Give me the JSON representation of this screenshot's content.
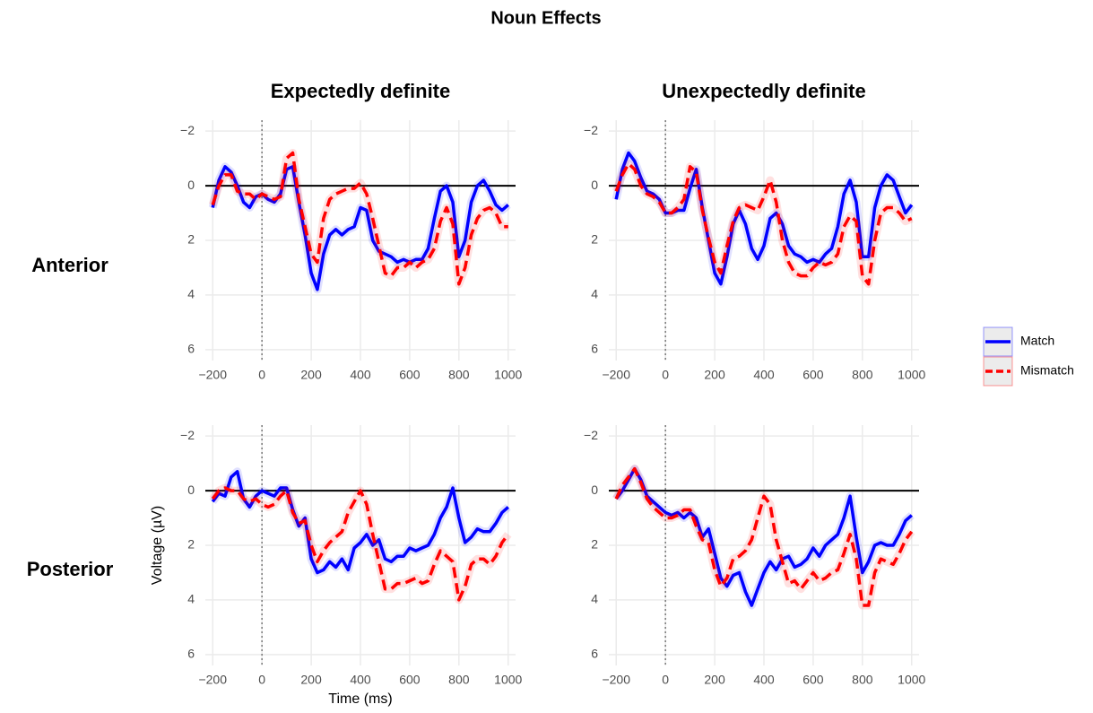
{
  "title": "Noun Effects",
  "column_labels": [
    "Expectedly definite",
    "Unexpectedly definite"
  ],
  "row_labels": [
    "Anterior",
    "Posterior"
  ],
  "chart_data": [
    {
      "type": "line",
      "legend": "right",
      "grid": true,
      "hline": 0,
      "vline": 0,
      "xlim": [
        -230,
        1030
      ],
      "ylim": [
        6.4,
        -2.4
      ],
      "xticks": [
        {
          "value": -200,
          "label": "−200"
        },
        0,
        200,
        400,
        600,
        800,
        1000
      ],
      "yticks": [
        {
          "value": -2,
          "label": "−2"
        },
        0,
        2,
        4,
        6
      ],
      "x": [
        -200,
        -175,
        -150,
        -125,
        -100,
        -75,
        -50,
        -25,
        0,
        25,
        50,
        75,
        100,
        125,
        150,
        175,
        200,
        225,
        250,
        275,
        300,
        325,
        350,
        375,
        400,
        425,
        450,
        475,
        500,
        525,
        550,
        575,
        600,
        625,
        650,
        675,
        700,
        725,
        750,
        775,
        800,
        825,
        850,
        875,
        900,
        925,
        950,
        975,
        1000
      ],
      "series": [
        {
          "name": "Match",
          "color": "#0000ff",
          "values": [
            0.8,
            -0.2,
            -0.7,
            -0.5,
            0,
            0.6,
            0.8,
            0.4,
            0.3,
            0.5,
            0.6,
            0.3,
            -0.6,
            -0.7,
            0.6,
            1.8,
            3.2,
            3.8,
            2.5,
            1.8,
            1.6,
            1.8,
            1.6,
            1.5,
            0.8,
            0.9,
            2,
            2.4,
            2.5,
            2.6,
            2.8,
            2.7,
            2.8,
            2.7,
            2.7,
            2.3,
            1.2,
            0.2,
            0,
            0.6,
            2.6,
            2,
            0.6,
            0,
            -0.2,
            0.2,
            0.7,
            0.9,
            0.7
          ]
        },
        {
          "name": "Mismatch",
          "color": "#ff0000",
          "values": [
            0.7,
            0,
            -0.4,
            -0.4,
            0.2,
            0.3,
            0.3,
            0.5,
            0.3,
            0.4,
            0.5,
            0.4,
            -1,
            -1.2,
            0.5,
            1.5,
            2.5,
            2.8,
            1.2,
            0.5,
            0.3,
            0.2,
            0.1,
            0.1,
            -0.1,
            0.3,
            1.2,
            2.2,
            3.2,
            3.3,
            3,
            3,
            2.8,
            3,
            2.8,
            2.7,
            2.3,
            1.3,
            0.8,
            1.4,
            3.6,
            3,
            1.8,
            1.2,
            0.9,
            0.8,
            1,
            1.5,
            1.5
          ]
        }
      ]
    },
    {
      "type": "line",
      "legend": "right",
      "grid": true,
      "hline": 0,
      "vline": 0,
      "xlim": [
        -230,
        1030
      ],
      "ylim": [
        6.4,
        -2.4
      ],
      "xticks": [
        {
          "value": -200,
          "label": "−200"
        },
        0,
        200,
        400,
        600,
        800,
        1000
      ],
      "yticks": [
        {
          "value": -2,
          "label": "−2"
        },
        0,
        2,
        4,
        6
      ],
      "x": [
        -200,
        -175,
        -150,
        -125,
        -100,
        -75,
        -50,
        -25,
        0,
        25,
        50,
        75,
        100,
        125,
        150,
        175,
        200,
        225,
        250,
        275,
        300,
        325,
        350,
        375,
        400,
        425,
        450,
        475,
        500,
        525,
        550,
        575,
        600,
        625,
        650,
        675,
        700,
        725,
        750,
        775,
        800,
        825,
        850,
        875,
        900,
        925,
        950,
        975,
        1000
      ],
      "series": [
        {
          "name": "Match",
          "color": "#0000ff",
          "values": [
            0.5,
            -0.6,
            -1.2,
            -0.9,
            -0.3,
            0.2,
            0.3,
            0.5,
            1,
            1,
            0.9,
            0.9,
            0.1,
            -0.6,
            0.8,
            2,
            3.2,
            3.6,
            2.6,
            1.4,
            0.9,
            1.4,
            2.3,
            2.7,
            2.2,
            1.2,
            1,
            1.4,
            2.2,
            2.5,
            2.6,
            2.8,
            2.7,
            2.8,
            2.5,
            2.3,
            1.5,
            0.3,
            -0.2,
            0.6,
            2.6,
            2.6,
            0.8,
            0,
            -0.4,
            -0.2,
            0.4,
            1,
            0.7
          ]
        },
        {
          "name": "Mismatch",
          "color": "#ff0000",
          "values": [
            0.2,
            -0.4,
            -0.8,
            -0.6,
            0,
            0.3,
            0.4,
            0.6,
            1,
            1,
            0.8,
            0.5,
            -0.7,
            -0.5,
            0.9,
            1.9,
            2.8,
            3.2,
            2.2,
            1.3,
            0.8,
            0.7,
            0.8,
            0.9,
            0.4,
            -0.2,
            0.6,
            2,
            2.8,
            3.2,
            3.3,
            3.3,
            3,
            2.8,
            2.9,
            2.8,
            2.5,
            1.5,
            1.1,
            1.3,
            3.3,
            3.6,
            2,
            1,
            0.8,
            0.8,
            1,
            1.3,
            1.2
          ]
        }
      ]
    },
    {
      "type": "line",
      "legend": "right",
      "grid": true,
      "hline": 0,
      "vline": 0,
      "xlabel": "Time (ms)",
      "ylabel": "Voltage (µV)",
      "xlim": [
        -230,
        1030
      ],
      "ylim": [
        6.4,
        -2.4
      ],
      "xticks": [
        {
          "value": -200,
          "label": "−200"
        },
        0,
        200,
        400,
        600,
        800,
        1000
      ],
      "yticks": [
        {
          "value": -2,
          "label": "−2"
        },
        0,
        2,
        4,
        6
      ],
      "x": [
        -200,
        -175,
        -150,
        -125,
        -100,
        -75,
        -50,
        -25,
        0,
        25,
        50,
        75,
        100,
        125,
        150,
        175,
        200,
        225,
        250,
        275,
        300,
        325,
        350,
        375,
        400,
        425,
        450,
        475,
        500,
        525,
        550,
        575,
        600,
        625,
        650,
        675,
        700,
        725,
        750,
        775,
        800,
        825,
        850,
        875,
        900,
        925,
        950,
        975,
        1000
      ],
      "series": [
        {
          "name": "Match",
          "color": "#0000ff",
          "values": [
            0.4,
            0.1,
            0.2,
            -0.5,
            -0.7,
            0.3,
            0.6,
            0.2,
            0,
            0.1,
            0.2,
            -0.1,
            -0.1,
            0.7,
            1.3,
            1,
            2.5,
            3,
            2.9,
            2.6,
            2.8,
            2.5,
            2.9,
            2.1,
            1.9,
            1.6,
            2,
            1.8,
            2.5,
            2.6,
            2.4,
            2.4,
            2.1,
            2.2,
            2.1,
            2,
            1.6,
            1,
            0.6,
            -0.1,
            1,
            1.9,
            1.7,
            1.4,
            1.5,
            1.5,
            1.2,
            0.8,
            0.6
          ]
        },
        {
          "name": "Mismatch",
          "color": "#ff0000",
          "values": [
            0.3,
            0,
            -0.1,
            0,
            0,
            0.3,
            0.4,
            0.3,
            0.5,
            0.6,
            0.5,
            0.2,
            0,
            0.8,
            1.2,
            1.1,
            2,
            2.6,
            2.2,
            1.9,
            1.7,
            1.5,
            0.8,
            0.4,
            0,
            0.5,
            1.6,
            2.6,
            3.6,
            3.6,
            3.4,
            3.4,
            3.3,
            3.2,
            3.4,
            3.3,
            2.7,
            2.2,
            2.4,
            2.6,
            4,
            3.5,
            2.7,
            2.5,
            2.5,
            2.7,
            2.4,
            1.9,
            1.6
          ]
        }
      ]
    },
    {
      "type": "line",
      "legend": "right",
      "grid": true,
      "hline": 0,
      "vline": 0,
      "xlim": [
        -230,
        1030
      ],
      "ylim": [
        6.4,
        -2.4
      ],
      "xticks": [
        {
          "value": -200,
          "label": "−200"
        },
        0,
        200,
        400,
        600,
        800,
        1000
      ],
      "yticks": [
        {
          "value": -2,
          "label": "−2"
        },
        0,
        2,
        4,
        6
      ],
      "x": [
        -200,
        -175,
        -150,
        -125,
        -100,
        -75,
        -50,
        -25,
        0,
        25,
        50,
        75,
        100,
        125,
        150,
        175,
        200,
        225,
        250,
        275,
        300,
        325,
        350,
        375,
        400,
        425,
        450,
        475,
        500,
        525,
        550,
        575,
        600,
        625,
        650,
        675,
        700,
        725,
        750,
        775,
        800,
        825,
        850,
        875,
        900,
        925,
        950,
        975,
        1000
      ],
      "series": [
        {
          "name": "Match",
          "color": "#0000ff",
          "values": [
            0.3,
            0,
            -0.4,
            -0.8,
            -0.4,
            0.2,
            0.4,
            0.6,
            0.8,
            0.9,
            0.8,
            1,
            0.8,
            1,
            1.7,
            1.4,
            2.3,
            3.2,
            3.5,
            3.1,
            3,
            3.7,
            4.2,
            3.6,
            3,
            2.6,
            2.9,
            2.5,
            2.4,
            2.8,
            2.7,
            2.5,
            2.1,
            2.4,
            2,
            1.8,
            1.6,
            1,
            0.2,
            1.7,
            3,
            2.6,
            2,
            1.9,
            2,
            2,
            1.6,
            1.1,
            0.9
          ]
        },
        {
          "name": "Mismatch",
          "color": "#ff0000",
          "values": [
            0.3,
            -0.2,
            -0.5,
            -0.8,
            -0.3,
            0.3,
            0.6,
            0.8,
            1,
            1,
            0.9,
            0.7,
            0.7,
            1.3,
            1.8,
            1.9,
            2.9,
            3.5,
            3.2,
            2.5,
            2.4,
            2.2,
            1.8,
            1,
            0.2,
            0.5,
            1.8,
            2.6,
            3.4,
            3.3,
            3.6,
            3.3,
            3,
            3.3,
            3.2,
            3,
            2.9,
            2.3,
            1.6,
            2.5,
            4.2,
            4.2,
            3,
            2.5,
            2.6,
            2.7,
            2.3,
            1.8,
            1.5
          ]
        }
      ]
    }
  ]
}
